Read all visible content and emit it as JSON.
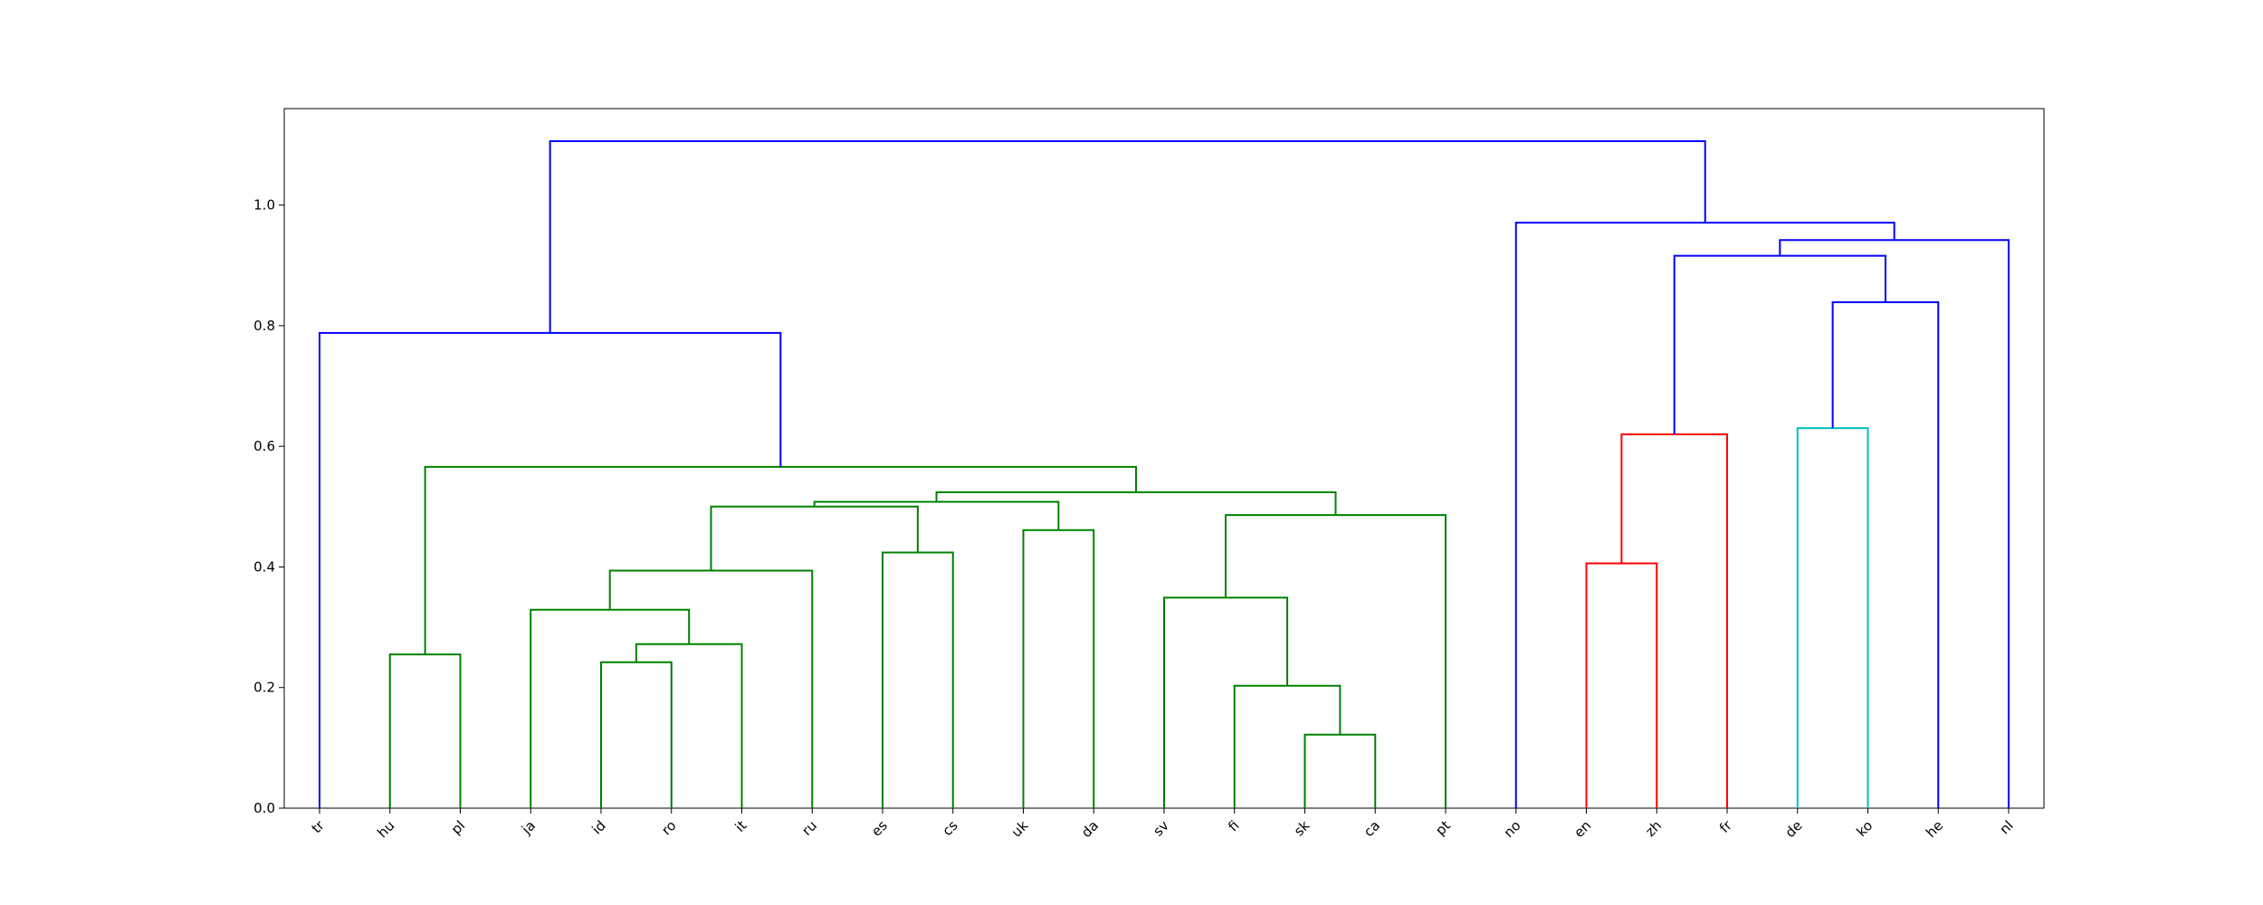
{
  "chart_data": {
    "type": "dendrogram",
    "title": "",
    "xlabel": "",
    "ylabel": "",
    "ylim": [
      0,
      1.16
    ],
    "yticks": [
      0.0,
      0.2,
      0.4,
      0.6,
      0.8,
      1.0
    ],
    "ytick_labels": [
      "0.0",
      "0.2",
      "0.4",
      "0.6",
      "0.8",
      "1.0"
    ],
    "grid": false,
    "leaves": [
      "tr",
      "hu",
      "pl",
      "ja",
      "id",
      "ro",
      "it",
      "ru",
      "es",
      "cs",
      "uk",
      "da",
      "sv",
      "fi",
      "sk",
      "ca",
      "pt",
      "no",
      "en",
      "zh",
      "fr",
      "de",
      "ko",
      "he",
      "nl"
    ],
    "colors": {
      "green": "#008000",
      "blue": "#0000ff",
      "red": "#ff0000",
      "cyan": "#00bfbf"
    },
    "links": [
      {
        "left": "hu",
        "right": "pl",
        "height": 0.255,
        "color": "green"
      },
      {
        "left": "id",
        "right": "ro",
        "height": 0.242,
        "color": "green"
      },
      {
        "left": "id|ro",
        "right": "it",
        "height": 0.272,
        "color": "green"
      },
      {
        "left": "ja",
        "right": "id|ro|it",
        "height": 0.329,
        "color": "green"
      },
      {
        "left": "ja|id|ro|it",
        "right": "ru",
        "height": 0.394,
        "color": "green"
      },
      {
        "left": "es",
        "right": "cs",
        "height": 0.424,
        "color": "green"
      },
      {
        "left": "ja|id|ro|it|ru",
        "right": "es|cs",
        "height": 0.5,
        "color": "green"
      },
      {
        "left": "uk",
        "right": "da",
        "height": 0.461,
        "color": "green"
      },
      {
        "left": "ja|id|ro|it|ru|es|cs",
        "right": "uk|da",
        "height": 0.508,
        "color": "green"
      },
      {
        "left": "sk",
        "right": "ca",
        "height": 0.122,
        "color": "green"
      },
      {
        "left": "fi",
        "right": "sk|ca",
        "height": 0.203,
        "color": "green"
      },
      {
        "left": "sv",
        "right": "fi|sk|ca",
        "height": 0.349,
        "color": "green"
      },
      {
        "left": "sv|fi|sk|ca",
        "right": "pt",
        "height": 0.486,
        "color": "green"
      },
      {
        "left": "ja|id|ro|it|ru|es|cs|uk|da",
        "right": "sv|fi|sk|ca|pt",
        "height": 0.524,
        "color": "green"
      },
      {
        "left": "hu|pl",
        "right": "ja|id|ro|it|ru|es|cs|uk|da|sv|fi|sk|ca|pt",
        "height": 0.566,
        "color": "green"
      },
      {
        "left": "tr",
        "right": "hu|pl|ja|id|ro|it|ru|es|cs|uk|da|sv|fi|sk|ca|pt",
        "height": 0.788,
        "color": "blue"
      },
      {
        "left": "en",
        "right": "zh",
        "height": 0.406,
        "color": "red"
      },
      {
        "left": "en|zh",
        "right": "fr",
        "height": 0.62,
        "color": "red"
      },
      {
        "left": "de",
        "right": "ko",
        "height": 0.63,
        "color": "cyan"
      },
      {
        "left": "de|ko",
        "right": "he",
        "height": 0.839,
        "color": "blue"
      },
      {
        "left": "en|zh|fr",
        "right": "de|ko|he",
        "height": 0.916,
        "color": "blue"
      },
      {
        "left": "en|zh|fr|de|ko|he",
        "right": "nl",
        "height": 0.942,
        "color": "blue"
      },
      {
        "left": "no",
        "right": "en|zh|fr|de|ko|he|nl",
        "height": 0.971,
        "color": "blue"
      },
      {
        "left": "tr|hu|pl|ja|id|ro|it|ru|es|cs|uk|da|sv|fi|sk|ca|pt",
        "right": "no|en|zh|fr|de|ko|he|nl",
        "height": 1.106,
        "color": "blue"
      }
    ]
  }
}
